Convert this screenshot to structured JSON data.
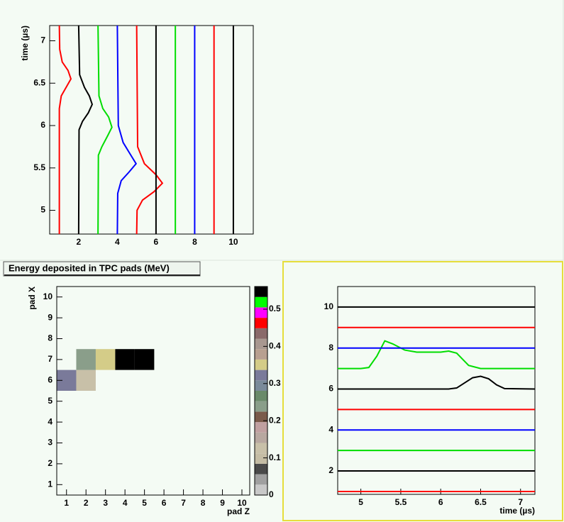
{
  "chart_data": [
    {
      "type": "line",
      "ylabel": "time (µs)",
      "xlim": [
        0.5,
        11.03
      ],
      "ylim": [
        4.72,
        7.18
      ],
      "xticks": [
        2,
        4,
        6,
        8,
        10
      ],
      "yticks": [
        5,
        5.5,
        6,
        6.5,
        7
      ],
      "series": [
        {
          "color": "#ff0000",
          "x": [
            1,
            1,
            1.1,
            1.35,
            1.6,
            1.45,
            1.15,
            1.02,
            1
          ],
          "values": [
            4.72,
            6.2,
            6.35,
            6.45,
            6.55,
            6.65,
            6.75,
            6.9,
            7.18
          ]
        },
        {
          "color": "#000000",
          "x": [
            2,
            2.02,
            2.2,
            2.5,
            2.7,
            2.55,
            2.3,
            2.05,
            2
          ],
          "values": [
            4.72,
            5.95,
            6.05,
            6.15,
            6.25,
            6.35,
            6.45,
            6.6,
            7.18
          ]
        },
        {
          "color": "#00dd00",
          "x": [
            3,
            3.02,
            3.2,
            3.5,
            3.72,
            3.55,
            3.25,
            3.05,
            3
          ],
          "values": [
            4.72,
            5.65,
            5.75,
            5.88,
            5.98,
            6.1,
            6.2,
            6.35,
            7.18
          ]
        },
        {
          "color": "#0000ff",
          "x": [
            4,
            4.02,
            4.2,
            4.6,
            4.97,
            4.7,
            4.3,
            4.05,
            4
          ],
          "values": [
            4.72,
            5.2,
            5.35,
            5.45,
            5.55,
            5.65,
            5.8,
            6.0,
            7.18
          ]
        },
        {
          "color": "#ff0000",
          "x": [
            5,
            5.02,
            5.3,
            5.9,
            6.33,
            6.0,
            5.4,
            5.05,
            5
          ],
          "values": [
            4.72,
            5.0,
            5.12,
            5.22,
            5.32,
            5.42,
            5.55,
            5.75,
            7.18
          ]
        },
        {
          "color": "#000000",
          "x": [
            6,
            6
          ],
          "values": [
            4.72,
            7.18
          ]
        },
        {
          "color": "#00dd00",
          "x": [
            7,
            7
          ],
          "values": [
            4.72,
            7.18
          ]
        },
        {
          "color": "#0000ff",
          "x": [
            8,
            8
          ],
          "values": [
            4.72,
            7.18
          ]
        },
        {
          "color": "#ff0000",
          "x": [
            9,
            9
          ],
          "values": [
            4.72,
            7.18
          ]
        },
        {
          "color": "#000000",
          "x": [
            10,
            10
          ],
          "values": [
            4.72,
            7.18
          ]
        }
      ]
    },
    {
      "type": "heatmap",
      "title": "Energy deposited in TPC pads (MeV)",
      "xlabel": "pad Z",
      "ylabel": "pad X",
      "xlim": [
        0.5,
        10.4
      ],
      "ylim": [
        0.5,
        10.5
      ],
      "xticks": [
        1,
        2,
        3,
        4,
        5,
        6,
        7,
        8,
        9,
        10
      ],
      "yticks": [
        1,
        2,
        3,
        4,
        5,
        6,
        7,
        8,
        9,
        10
      ],
      "cells": [
        {
          "x": 1,
          "y": 6,
          "value": 0.32
        },
        {
          "x": 2,
          "y": 6,
          "value": 0.12
        },
        {
          "x": 2,
          "y": 7,
          "value": 0.245
        },
        {
          "x": 3,
          "y": 7,
          "value": 0.36
        },
        {
          "x": 4,
          "y": 7,
          "value": 0.55
        },
        {
          "x": 5,
          "y": 7,
          "value": 0.55
        }
      ],
      "zlim": [
        0,
        0.561
      ],
      "zticks": [
        0,
        0.1,
        0.2,
        0.3,
        0.4,
        0.5
      ],
      "palette": [
        "#c8c8c8",
        "#a0a0a0",
        "#4a4a4a",
        "#c4bca4",
        "#c8c0a8",
        "#b8a8a0",
        "#c0a0a0",
        "#7a5a4a",
        "#8a9e8a",
        "#6a8a6a",
        "#7a8a9a",
        "#7a7a9a",
        "#d4cc88",
        "#b8a090",
        "#a89890",
        "#8a6a6a",
        "#ff0000",
        "#ff00ff",
        "#00ff00",
        "#000000"
      ]
    },
    {
      "type": "line",
      "xlabel": "time (µs)",
      "xlim": [
        4.71,
        7.18
      ],
      "ylim": [
        0.86,
        11.0
      ],
      "xticks": [
        5,
        5.5,
        6,
        6.5,
        7
      ],
      "yticks": [
        2,
        4,
        6,
        8,
        10
      ],
      "series": [
        {
          "color": "#ff0000",
          "x": [
            4.71,
            7.18
          ],
          "values": [
            1,
            1
          ]
        },
        {
          "color": "#000000",
          "x": [
            4.71,
            7.18
          ],
          "values": [
            2,
            2
          ]
        },
        {
          "color": "#00dd00",
          "x": [
            4.71,
            7.18
          ],
          "values": [
            3,
            3
          ]
        },
        {
          "color": "#0000ff",
          "x": [
            4.71,
            7.18
          ],
          "values": [
            4,
            4
          ]
        },
        {
          "color": "#ff0000",
          "x": [
            4.71,
            7.18
          ],
          "values": [
            5,
            5
          ]
        },
        {
          "color": "#000000",
          "x": [
            4.71,
            6.1,
            6.2,
            6.3,
            6.4,
            6.5,
            6.6,
            6.7,
            6.8,
            7.18
          ],
          "values": [
            6,
            6,
            6.05,
            6.3,
            6.55,
            6.62,
            6.5,
            6.2,
            6.02,
            6
          ]
        },
        {
          "color": "#00dd00",
          "x": [
            4.71,
            5.0,
            5.1,
            5.2,
            5.3,
            5.4,
            5.55,
            5.7,
            6.0,
            6.1,
            6.2,
            6.35,
            6.5,
            7.18
          ],
          "values": [
            7,
            7,
            7.05,
            7.6,
            8.35,
            8.2,
            7.9,
            7.8,
            7.8,
            7.85,
            7.75,
            7.15,
            7,
            7
          ]
        },
        {
          "color": "#0000ff",
          "x": [
            4.71,
            7.18
          ],
          "values": [
            8,
            8
          ]
        },
        {
          "color": "#ff0000",
          "x": [
            4.71,
            7.18
          ],
          "values": [
            9,
            9
          ]
        },
        {
          "color": "#000000",
          "x": [
            4.71,
            7.18
          ],
          "values": [
            10,
            10
          ]
        }
      ]
    }
  ]
}
